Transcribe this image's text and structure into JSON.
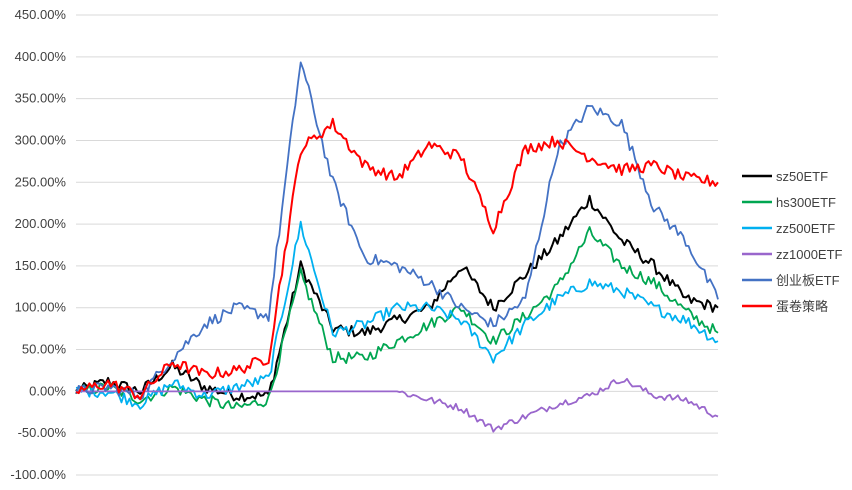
{
  "chart_data": {
    "type": "line",
    "title": "",
    "xlabel": "",
    "ylabel": "",
    "ylim": [
      -100,
      450
    ],
    "y_ticks": [
      {
        "value": 450,
        "label": "450.00%"
      },
      {
        "value": 400,
        "label": "400.00%"
      },
      {
        "value": 350,
        "label": "350.00%"
      },
      {
        "value": 300,
        "label": "300.00%"
      },
      {
        "value": 250,
        "label": "250.00%"
      },
      {
        "value": 200,
        "label": "200.00%"
      },
      {
        "value": 150,
        "label": "150.00%"
      },
      {
        "value": 100,
        "label": "100.00%"
      },
      {
        "value": 50,
        "label": "50.00%"
      },
      {
        "value": 0,
        "label": "0.00%"
      },
      {
        "value": -50,
        "label": "-50.00%"
      },
      {
        "value": -100,
        "label": "-100.00%"
      }
    ],
    "grid": true,
    "legend_position": "right",
    "x": [
      0,
      5,
      10,
      15,
      20,
      25,
      30,
      35,
      40,
      45,
      50,
      55,
      60,
      65,
      70,
      75,
      80,
      85,
      90,
      95,
      100
    ],
    "series": [
      {
        "name": "sz50ETF",
        "color": "#000000",
        "values": [
          0,
          12,
          0,
          30,
          5,
          -5,
          -5,
          150,
          75,
          70,
          85,
          100,
          150,
          100,
          140,
          180,
          230,
          180,
          150,
          110,
          100
        ]
      },
      {
        "name": "hs300ETF",
        "color": "#00a651",
        "values": [
          0,
          5,
          -10,
          5,
          -10,
          -20,
          -10,
          140,
          40,
          40,
          60,
          80,
          100,
          60,
          90,
          125,
          190,
          150,
          130,
          95,
          70
        ]
      },
      {
        "name": "zz500ETF",
        "color": "#00b0f0",
        "values": [
          0,
          0,
          -15,
          10,
          -5,
          5,
          15,
          200,
          70,
          80,
          100,
          100,
          85,
          40,
          80,
          110,
          130,
          120,
          100,
          85,
          60
        ]
      },
      {
        "name": "zz1000ETF",
        "color": "#9966cc",
        "values": [
          0,
          0,
          0,
          0,
          0,
          0,
          0,
          0,
          0,
          0,
          0,
          -10,
          -20,
          -45,
          -30,
          -15,
          -5,
          15,
          -5,
          -10,
          -30
        ]
      },
      {
        "name": "创业板ETF",
        "color": "#4472c4",
        "values": [
          0,
          5,
          -5,
          40,
          80,
          100,
          90,
          395,
          250,
          160,
          150,
          130,
          100,
          80,
          110,
          290,
          340,
          320,
          220,
          180,
          110
        ]
      },
      {
        "name": "蛋卷策略",
        "color": "#ff0000",
        "values": [
          0,
          10,
          -5,
          35,
          20,
          25,
          40,
          290,
          320,
          270,
          255,
          295,
          280,
          195,
          290,
          300,
          280,
          265,
          270,
          255,
          250
        ]
      }
    ]
  }
}
